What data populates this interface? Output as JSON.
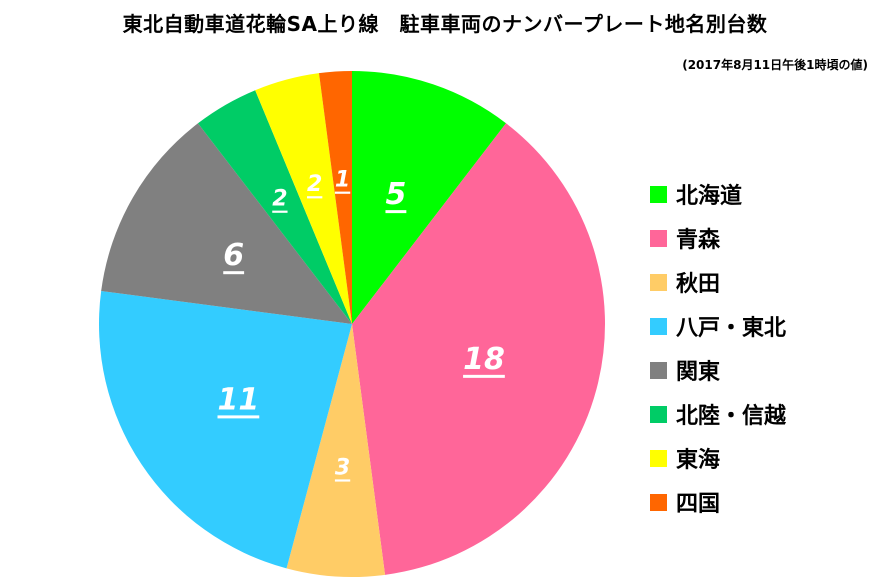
{
  "chart_data": {
    "type": "pie",
    "title": "東北自動車道花輪SA上り線　駐車車両のナンバープレート地名別台数",
    "subtitle": "(2017年8月11日午後1時頃の値)",
    "legend_position": "right",
    "slices": [
      {
        "label": "北海道",
        "value": 5,
        "color": "#00FF00"
      },
      {
        "label": "青森",
        "value": 18,
        "color": "#FF6699"
      },
      {
        "label": "秋田",
        "value": 3,
        "color": "#FFCC66"
      },
      {
        "label": "八戸・東北",
        "value": 11,
        "color": "#33CCFF"
      },
      {
        "label": "関東",
        "value": 6,
        "color": "#808080"
      },
      {
        "label": "北陸・信越",
        "value": 2,
        "color": "#00CC66"
      },
      {
        "label": "東海",
        "value": 2,
        "color": "#FFFF00"
      },
      {
        "label": "四国",
        "value": 1,
        "color": "#FF6600"
      }
    ]
  }
}
